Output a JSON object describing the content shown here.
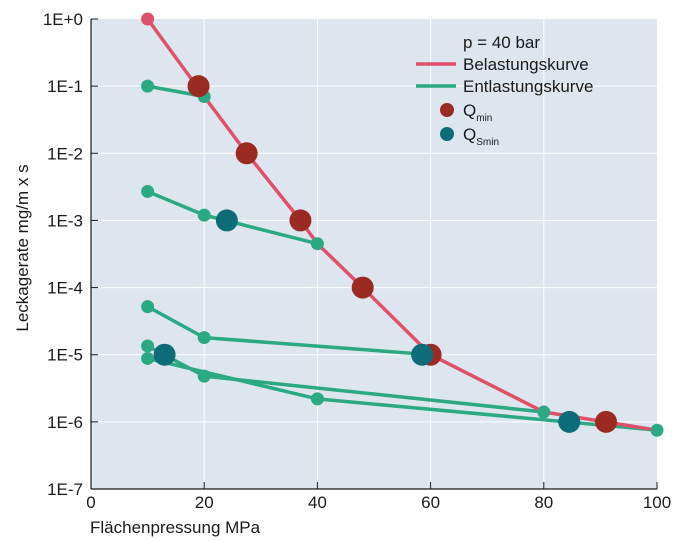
{
  "colors": {
    "plot_bg": "#dde5ef",
    "grid": "#ffffff",
    "belastung": "#e0506a",
    "entlastung": "#2aa982",
    "qmin": "#9b2a22",
    "qsmin": "#0e6b78"
  },
  "chart_data": {
    "type": "scatter",
    "xlabel": "Flächenpressung  MPa",
    "ylabel": "Leckagerate  mg/m x s",
    "xlim": [
      0,
      100
    ],
    "ylim_log10": [
      -7,
      0
    ],
    "yscale": "log",
    "x_ticks": [
      "0",
      "20",
      "40",
      "60",
      "80",
      "100"
    ],
    "y_ticks": [
      "1E+0",
      "1E-1",
      "1E-2",
      "1E-3",
      "1E-4",
      "1E-5",
      "1E-6",
      "1E-7"
    ],
    "grid": true,
    "legend_position": "top-right",
    "legend": {
      "title": "p = 40 bar",
      "belastung": "Belastungskurve",
      "entlastung": "Entlastungskurve",
      "qmin_main": "Q",
      "qmin_sub": "min",
      "qsmin_main": "Q",
      "qsmin_sub": "Smin"
    },
    "belastungskurve": {
      "name": "Belastungskurve",
      "points": [
        [
          10,
          1.0
        ],
        [
          20,
          0.07
        ],
        [
          27.5,
          0.01
        ],
        [
          37,
          0.001
        ],
        [
          40,
          0.00045
        ],
        [
          48,
          0.0001
        ],
        [
          60,
          1e-05
        ],
        [
          80,
          1.4e-06
        ],
        [
          100,
          7.5e-07
        ]
      ]
    },
    "entlastungskurven": [
      {
        "points": [
          [
            10,
            0.1
          ],
          [
            20,
            0.07
          ]
        ]
      },
      {
        "points": [
          [
            10,
            0.0027
          ],
          [
            20,
            0.0012
          ],
          [
            40,
            0.00045
          ]
        ]
      },
      {
        "points": [
          [
            10,
            5.2e-05
          ],
          [
            20,
            1.8e-05
          ],
          [
            60,
            1e-05
          ]
        ]
      },
      {
        "points": [
          [
            10,
            1.35e-05
          ],
          [
            20,
            4.8e-06
          ],
          [
            80,
            1.4e-06
          ]
        ]
      },
      {
        "points": [
          [
            10,
            8.8e-06
          ],
          [
            40,
            2.2e-06
          ],
          [
            100,
            7.5e-07
          ]
        ]
      }
    ],
    "qmin_points": [
      [
        19,
        0.1
      ],
      [
        27.5,
        0.01
      ],
      [
        37,
        0.001
      ],
      [
        48,
        0.0001
      ],
      [
        60,
        1e-05
      ],
      [
        91,
        1e-06
      ]
    ],
    "qsmin_points": [
      [
        13,
        1e-05
      ],
      [
        24,
        0.001
      ],
      [
        58.5,
        1e-05
      ],
      [
        84.5,
        1e-06
      ]
    ]
  }
}
